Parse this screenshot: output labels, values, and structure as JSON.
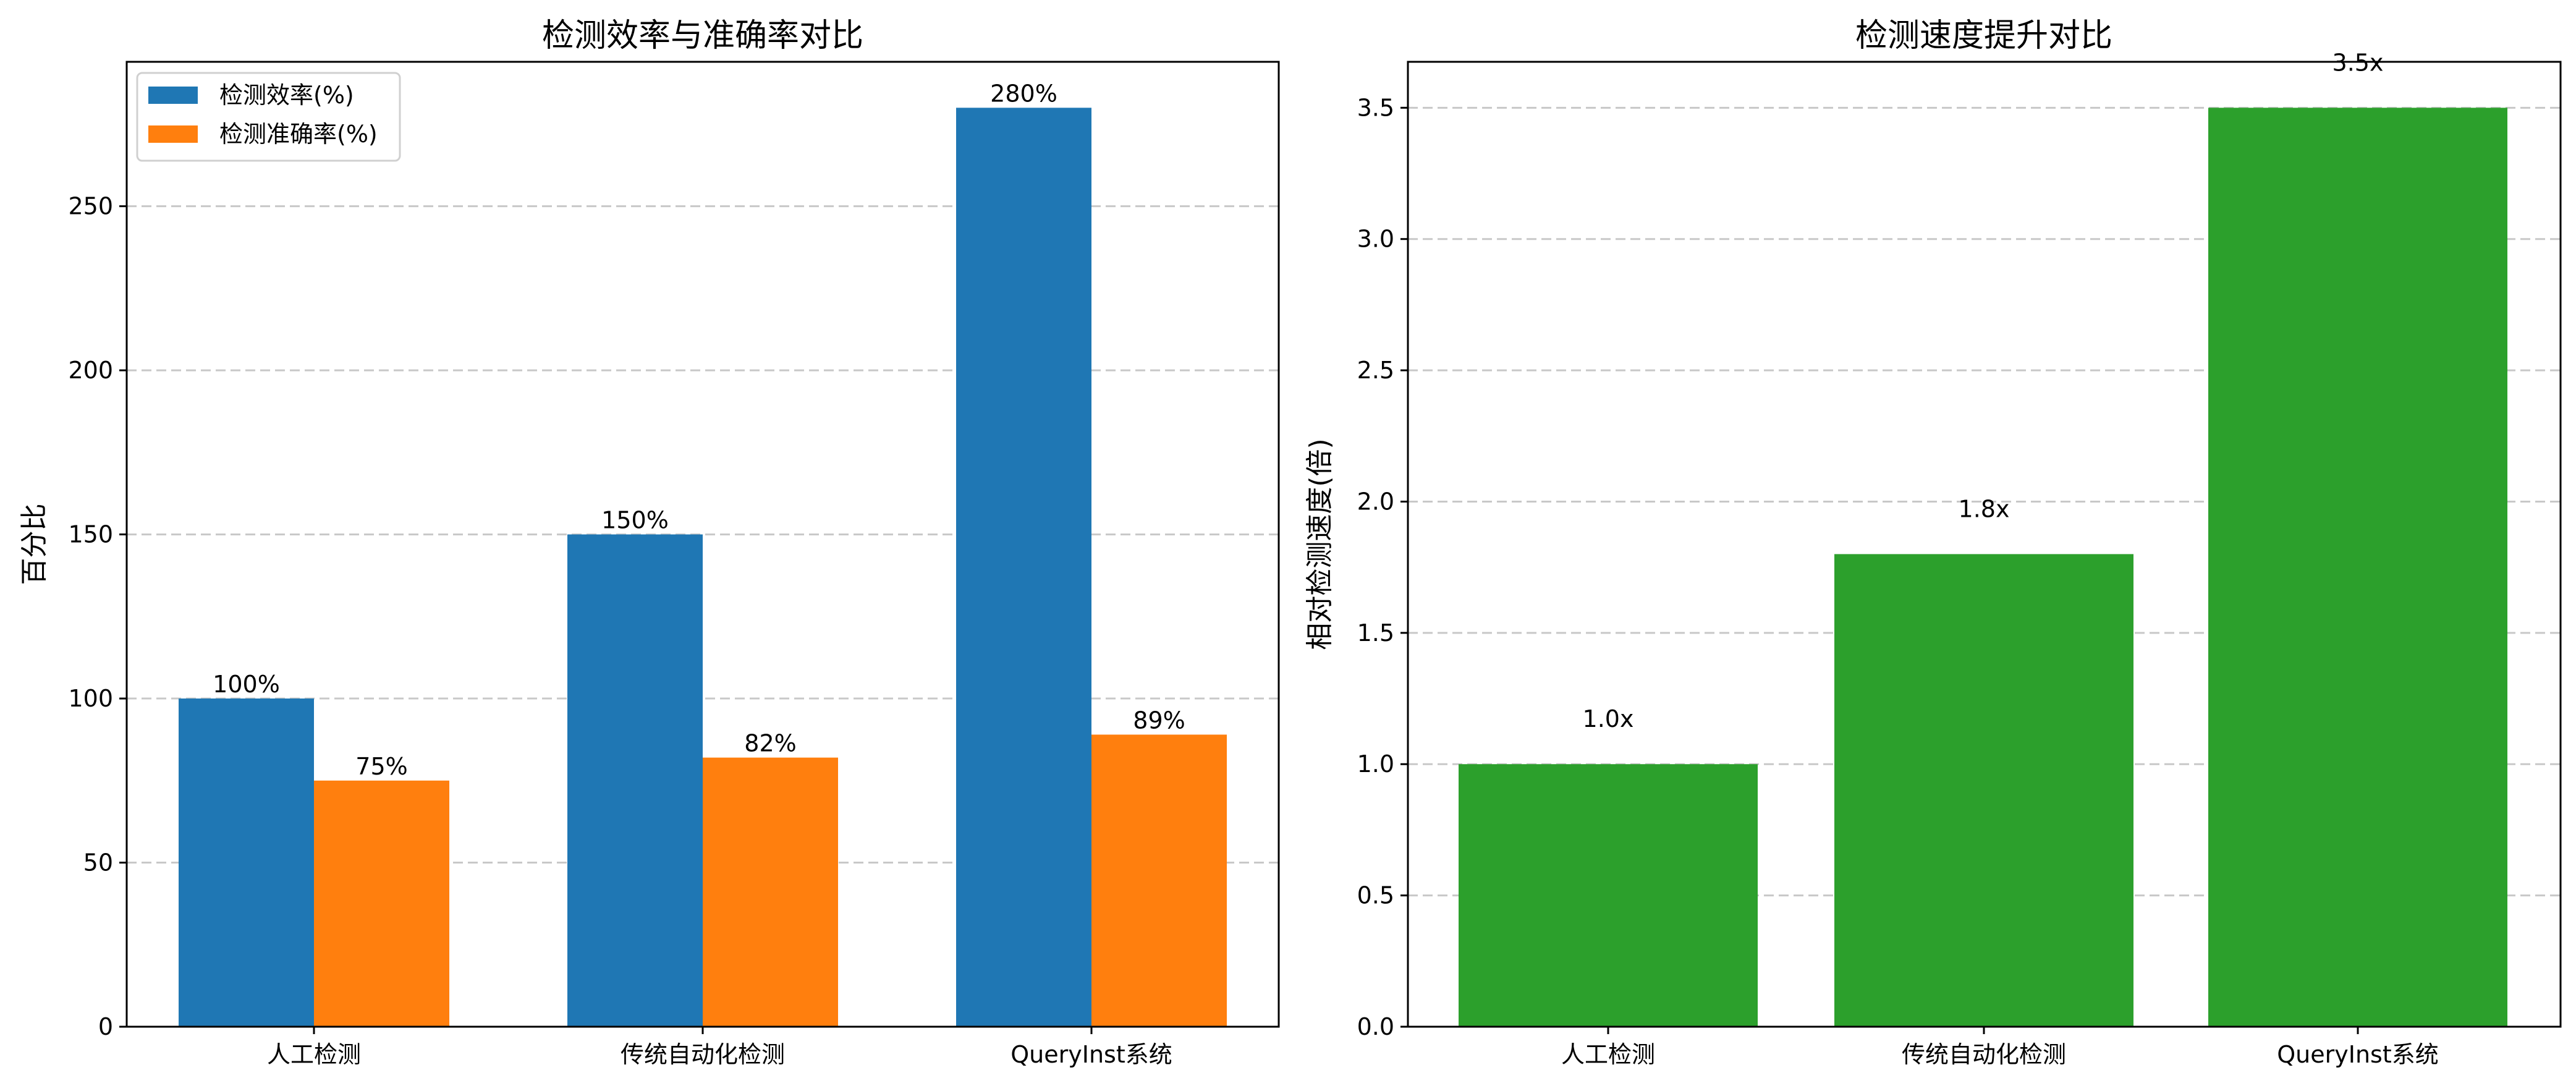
{
  "chart_data": [
    {
      "type": "bar",
      "title": "检测效率与准确率对比",
      "xlabel": "",
      "ylabel": "百分比",
      "categories": [
        "人工检测",
        "传统自动化检测",
        "QueryInst系统"
      ],
      "series": [
        {
          "name": "检测效率(%)",
          "values": [
            100,
            150,
            280
          ],
          "color": "#1f77b4",
          "labels": [
            "100%",
            "150%",
            "280%"
          ]
        },
        {
          "name": "检测准确率(%)",
          "values": [
            75,
            82,
            89
          ],
          "color": "#ff7f0e",
          "labels": [
            "75%",
            "82%",
            "89%"
          ]
        }
      ],
      "ylim": [
        0,
        294
      ],
      "yticks": [
        0,
        50,
        100,
        150,
        200,
        250
      ],
      "ytick_labels": [
        "0",
        "50",
        "100",
        "150",
        "200",
        "250"
      ],
      "grid": "y-dashed",
      "legend": "top-left"
    },
    {
      "type": "bar",
      "title": "检测速度提升对比",
      "xlabel": "",
      "ylabel": "相对检测速度(倍)",
      "categories": [
        "人工检测",
        "传统自动化检测",
        "QueryInst系统"
      ],
      "series": [
        {
          "name": "相对检测速度",
          "values": [
            1.0,
            1.8,
            3.5
          ],
          "color": "#2ca02c",
          "labels": [
            "1.0x",
            "1.8x",
            "3.5x"
          ]
        }
      ],
      "ylim": [
        0,
        3.675
      ],
      "yticks": [
        0,
        0.5,
        1.0,
        1.5,
        2.0,
        2.5,
        3.0,
        3.5
      ],
      "ytick_labels": [
        "0.0",
        "0.5",
        "1.0",
        "1.5",
        "2.0",
        "2.5",
        "3.0",
        "3.5"
      ],
      "grid": "y-dashed",
      "legend": "none"
    }
  ]
}
